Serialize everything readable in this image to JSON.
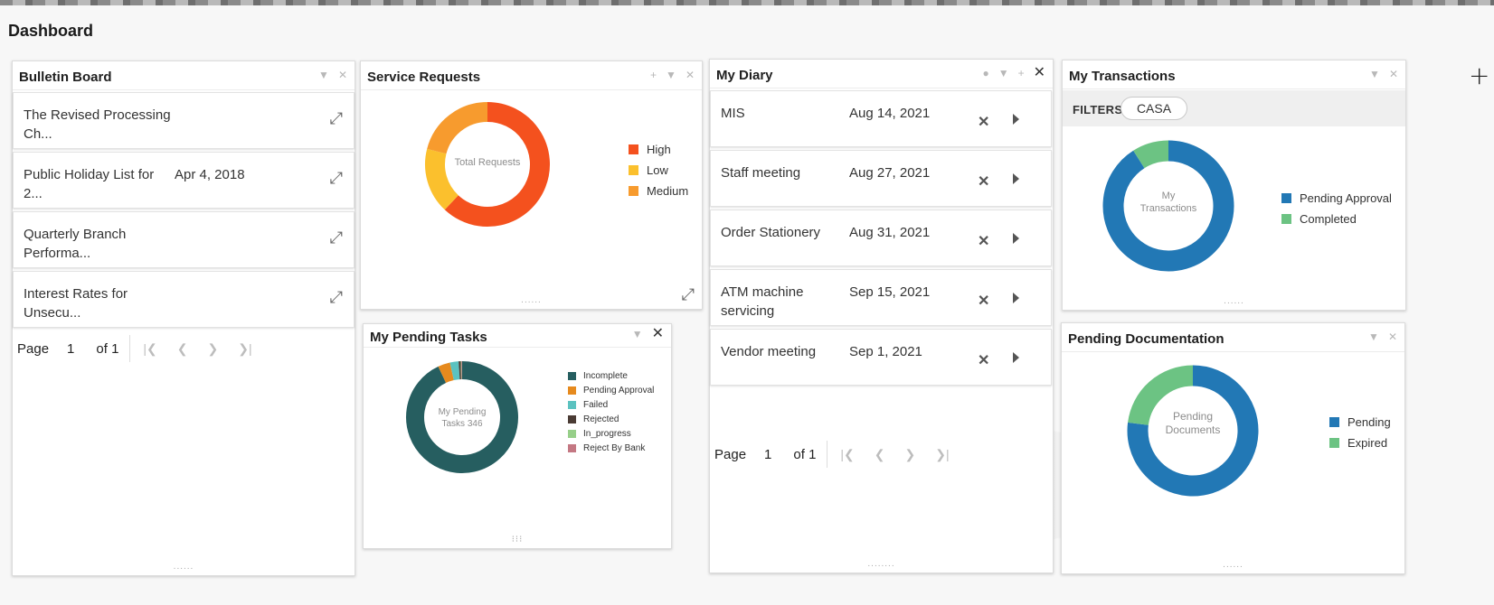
{
  "page": {
    "title": "Dashboard"
  },
  "colors": {
    "high": "#f4511e",
    "low": "#fbc02d",
    "medium": "#f79b2e",
    "incomplete": "#265e60",
    "pending_approval_task": "#e68a1e",
    "failed": "#5bc2c0",
    "rejected": "#4a3b34",
    "in_progress": "#97cf89",
    "reject_by_bank": "#c47883",
    "txn_pending": "#2278b5",
    "txn_completed": "#6cc383",
    "doc_pending": "#2278b5",
    "doc_expired": "#6cc383"
  },
  "bulletin": {
    "title": "Bulletin Board",
    "items": [
      {
        "title": "The Revised Processing Ch...",
        "date": ""
      },
      {
        "title": "Public Holiday List for 2...",
        "date": "Apr 4, 2018"
      },
      {
        "title": "Quarterly Branch Performa...",
        "date": ""
      },
      {
        "title": "Interest Rates for Unsecu...",
        "date": ""
      }
    ],
    "pager": {
      "page_label": "Page",
      "page": "1",
      "of_label": "of 1"
    }
  },
  "service_requests": {
    "title": "Service Requests",
    "center_label": "Total Requests",
    "legend": [
      {
        "label": "High",
        "color_key": "high"
      },
      {
        "label": "Low",
        "color_key": "low"
      },
      {
        "label": "Medium",
        "color_key": "medium"
      }
    ]
  },
  "pending_tasks": {
    "title": "My Pending Tasks",
    "center_label": "My Pending Tasks 346",
    "legend": [
      {
        "label": "Incomplete"
      },
      {
        "label": "Pending Approval"
      },
      {
        "label": "Failed"
      },
      {
        "label": "Rejected"
      },
      {
        "label": "In_progress"
      },
      {
        "label": "Reject By Bank"
      }
    ]
  },
  "diary": {
    "title": "My Diary",
    "items": [
      {
        "title": "MIS",
        "date": "Aug 14, 2021"
      },
      {
        "title": "Staff meeting",
        "date": "Aug 27, 2021"
      },
      {
        "title": "Order Stationery",
        "date": "Aug 31, 2021"
      },
      {
        "title": "ATM machine servicing",
        "date": "Sep 15, 2021"
      },
      {
        "title": "Vendor meeting",
        "date": "Sep 1, 2021"
      }
    ],
    "pager": {
      "page_label": "Page",
      "page": "1",
      "of_label": "of 1"
    }
  },
  "transactions": {
    "title": "My Transactions",
    "filters_label": "FILTERS",
    "filter_chip": "CASA",
    "center_label": "My Transactions",
    "legend": [
      {
        "label": "Pending Approval"
      },
      {
        "label": "Completed"
      }
    ]
  },
  "documentation": {
    "title": "Pending Documentation",
    "center_label": "Pending Documents",
    "legend": [
      {
        "label": "Pending"
      },
      {
        "label": "Expired"
      }
    ]
  },
  "chart_data": [
    {
      "type": "pie",
      "name": "Service Requests",
      "categories": [
        "High",
        "Low",
        "Medium"
      ],
      "values": [
        62,
        17,
        21
      ]
    },
    {
      "type": "pie",
      "name": "My Pending Tasks",
      "categories": [
        "Incomplete",
        "Pending Approval",
        "Failed",
        "Rejected",
        "In_progress",
        "Reject By Bank"
      ],
      "values": [
        93,
        3.5,
        2.5,
        0.6,
        0.2,
        0.2
      ]
    },
    {
      "type": "pie",
      "name": "My Transactions",
      "categories": [
        "Pending Approval",
        "Completed"
      ],
      "values": [
        91,
        9
      ]
    },
    {
      "type": "pie",
      "name": "Pending Documentation",
      "categories": [
        "Pending",
        "Expired"
      ],
      "values": [
        77,
        23
      ]
    }
  ]
}
